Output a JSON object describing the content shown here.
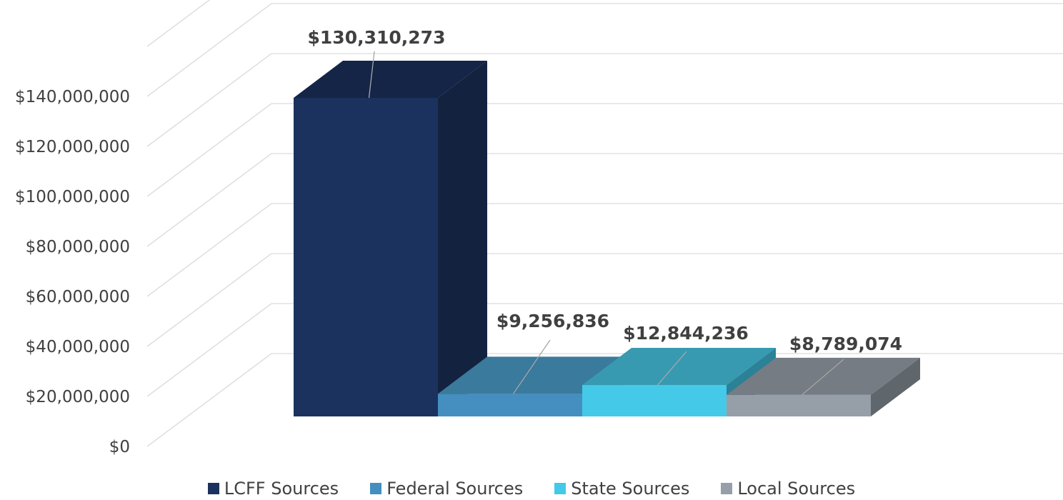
{
  "chart_data": {
    "type": "bar",
    "title": "",
    "xlabel": "",
    "ylabel": "",
    "categories": [
      ""
    ],
    "series": [
      {
        "name": "LCFF Sources",
        "values": [
          130310273
        ],
        "label": "$130,310,273",
        "color": "#1b325e",
        "top_color": "#152548",
        "side_color": "#13223f"
      },
      {
        "name": "Federal Sources",
        "values": [
          9256836
        ],
        "label": "$9,256,836",
        "color": "#448fbf",
        "top_color": "#3a7a9c",
        "side_color": "#2f6a88"
      },
      {
        "name": "State Sources",
        "values": [
          12844236
        ],
        "label": "$12,844,236",
        "color": "#44c9e8",
        "top_color": "#379ab1",
        "side_color": "#2b8196"
      },
      {
        "name": "Local Sources",
        "values": [
          8789074
        ],
        "label": "$8,789,074",
        "color": "#969fa8",
        "top_color": "#757c83",
        "side_color": "#5f666c"
      }
    ],
    "ylim": [
      0,
      160000000
    ],
    "yticks": [
      0,
      20000000,
      40000000,
      60000000,
      80000000,
      100000000,
      120000000,
      140000000
    ],
    "ytick_labels": [
      "$0",
      "$20,000,000",
      "$40,000,000",
      "$60,000,000",
      "$80,000,000",
      "$100,000,000",
      "$120,000,000",
      "$140,000,000"
    ],
    "grid": true,
    "legend_position": "bottom",
    "style": "3d-column"
  }
}
